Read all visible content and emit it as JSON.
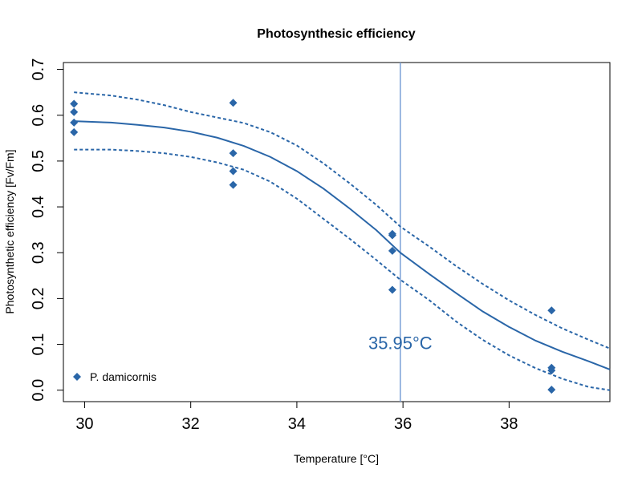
{
  "colors": {
    "series": "#2a66a8",
    "ed50_line": "#7aa0d6",
    "frame": "#000000"
  },
  "chart_data": {
    "type": "scatter",
    "title": "Photosynthesic efficiency",
    "xlabel": "Temperature [°C]",
    "ylabel": "Photosynthetic efficiency [Fv/Fm]",
    "xlim": [
      29.6,
      39.9
    ],
    "ylim": [
      -0.025,
      0.715
    ],
    "x_ticks": [
      30,
      32,
      34,
      36,
      38
    ],
    "x_tick_labels": [
      "30",
      "32",
      "34",
      "36",
      "38"
    ],
    "y_ticks": [
      0.0,
      0.1,
      0.2,
      0.3,
      0.4,
      0.5,
      0.6,
      0.7
    ],
    "y_tick_labels": [
      "0.0",
      "0.1",
      "0.2",
      "0.3",
      "0.4",
      "0.5",
      "0.6",
      "0.7"
    ],
    "grid": false,
    "legend_position": "bottom-left",
    "series": [
      {
        "name": "P. damicornis",
        "marker": "diamond",
        "points": [
          {
            "x": 29.8,
            "y": 0.625
          },
          {
            "x": 29.8,
            "y": 0.607
          },
          {
            "x": 29.8,
            "y": 0.584
          },
          {
            "x": 29.8,
            "y": 0.563
          },
          {
            "x": 32.8,
            "y": 0.627
          },
          {
            "x": 32.8,
            "y": 0.517
          },
          {
            "x": 32.8,
            "y": 0.478
          },
          {
            "x": 32.8,
            "y": 0.448
          },
          {
            "x": 35.8,
            "y": 0.341
          },
          {
            "x": 35.8,
            "y": 0.338
          },
          {
            "x": 35.8,
            "y": 0.304
          },
          {
            "x": 35.8,
            "y": 0.219
          },
          {
            "x": 38.8,
            "y": 0.174
          },
          {
            "x": 38.8,
            "y": 0.049
          },
          {
            "x": 38.8,
            "y": 0.043
          },
          {
            "x": 38.8,
            "y": 0.001
          }
        ]
      }
    ],
    "fit_curve": {
      "x": [
        29.8,
        30.5,
        31.0,
        31.5,
        32.0,
        32.5,
        33.0,
        33.5,
        34.0,
        34.5,
        35.0,
        35.5,
        35.95,
        36.5,
        37.0,
        37.5,
        38.0,
        38.5,
        39.0,
        39.5,
        39.9
      ],
      "y": [
        0.587,
        0.584,
        0.579,
        0.573,
        0.564,
        0.551,
        0.533,
        0.509,
        0.478,
        0.44,
        0.396,
        0.349,
        0.3,
        0.253,
        0.212,
        0.172,
        0.138,
        0.108,
        0.084,
        0.063,
        0.045
      ]
    },
    "confidence_upper": {
      "x": [
        29.8,
        30.5,
        31.0,
        31.5,
        32.0,
        32.5,
        33.0,
        33.5,
        34.0,
        34.5,
        35.0,
        35.5,
        35.95,
        36.5,
        37.0,
        37.5,
        38.0,
        38.5,
        39.0,
        39.5,
        39.9
      ],
      "y": [
        0.65,
        0.643,
        0.634,
        0.622,
        0.607,
        0.595,
        0.583,
        0.563,
        0.534,
        0.495,
        0.451,
        0.404,
        0.357,
        0.313,
        0.271,
        0.232,
        0.196,
        0.164,
        0.135,
        0.11,
        0.091
      ]
    },
    "confidence_lower": {
      "x": [
        29.8,
        30.5,
        31.0,
        31.5,
        32.0,
        32.5,
        33.0,
        33.5,
        34.0,
        34.5,
        35.0,
        35.5,
        35.95,
        36.5,
        37.0,
        37.5,
        38.0,
        38.5,
        39.0,
        39.5,
        39.9
      ],
      "y": [
        0.525,
        0.525,
        0.522,
        0.517,
        0.509,
        0.497,
        0.481,
        0.455,
        0.418,
        0.374,
        0.33,
        0.284,
        0.241,
        0.196,
        0.15,
        0.11,
        0.076,
        0.048,
        0.025,
        0.007,
        0.0
      ]
    },
    "ed50": {
      "x": 35.95,
      "label": "35.95°C"
    }
  }
}
